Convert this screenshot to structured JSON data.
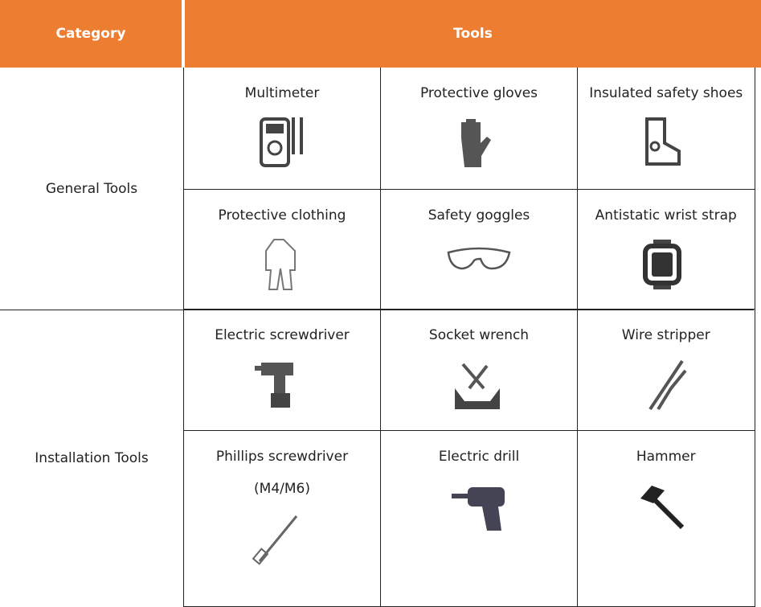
{
  "header": {
    "category": "Category",
    "tools": "Tools"
  },
  "groups": [
    {
      "category": "General Tools",
      "tools": [
        "Multimeter",
        "Protective gloves",
        "Insulated safety shoes",
        "Protective clothing",
        "Safety goggles",
        "Antistatic wrist strap"
      ]
    },
    {
      "category": "Installation Tools",
      "tools": [
        "Electric screwdriver",
        "Socket wrench",
        "Wire stripper",
        "Phillips screwdriver (M4/M6)",
        "Electric drill",
        "Hammer"
      ]
    }
  ]
}
